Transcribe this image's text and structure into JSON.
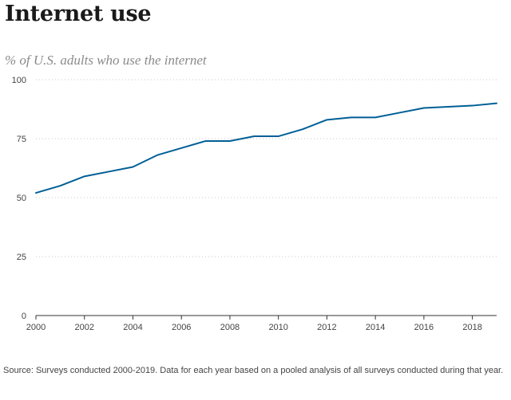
{
  "title": "Internet use",
  "subtitle": "% of U.S. adults who use the internet",
  "note": "Source: Surveys conducted 2000-2019. Data for each year based on a pooled analysis of all surveys conducted during that year.",
  "chart_data": {
    "type": "line",
    "title": "Internet use",
    "subtitle": "% of U.S. adults who use the internet",
    "xlabel": "",
    "ylabel": "",
    "x": [
      2000,
      2001,
      2002,
      2003,
      2004,
      2005,
      2006,
      2007,
      2008,
      2009,
      2010,
      2011,
      2012,
      2013,
      2014,
      2015,
      2016,
      2017,
      2018,
      2019
    ],
    "series": [
      {
        "values": [
          52,
          55,
          59,
          61,
          63,
          68,
          71,
          74,
          74,
          76,
          76,
          79,
          83,
          84,
          84,
          86,
          88,
          88.5,
          89,
          90
        ],
        "color": "#005f96"
      }
    ],
    "xlim": [
      2000,
      2019
    ],
    "ylim": [
      0,
      100
    ],
    "x_ticks": [
      "2000",
      "2002",
      "2004",
      "2006",
      "2008",
      "2010",
      "2012",
      "2014",
      "2016",
      "2018"
    ],
    "y_ticks": [
      "0",
      "25",
      "50",
      "75",
      "100"
    ],
    "grid": "horizontal dotted",
    "legend": "none"
  }
}
